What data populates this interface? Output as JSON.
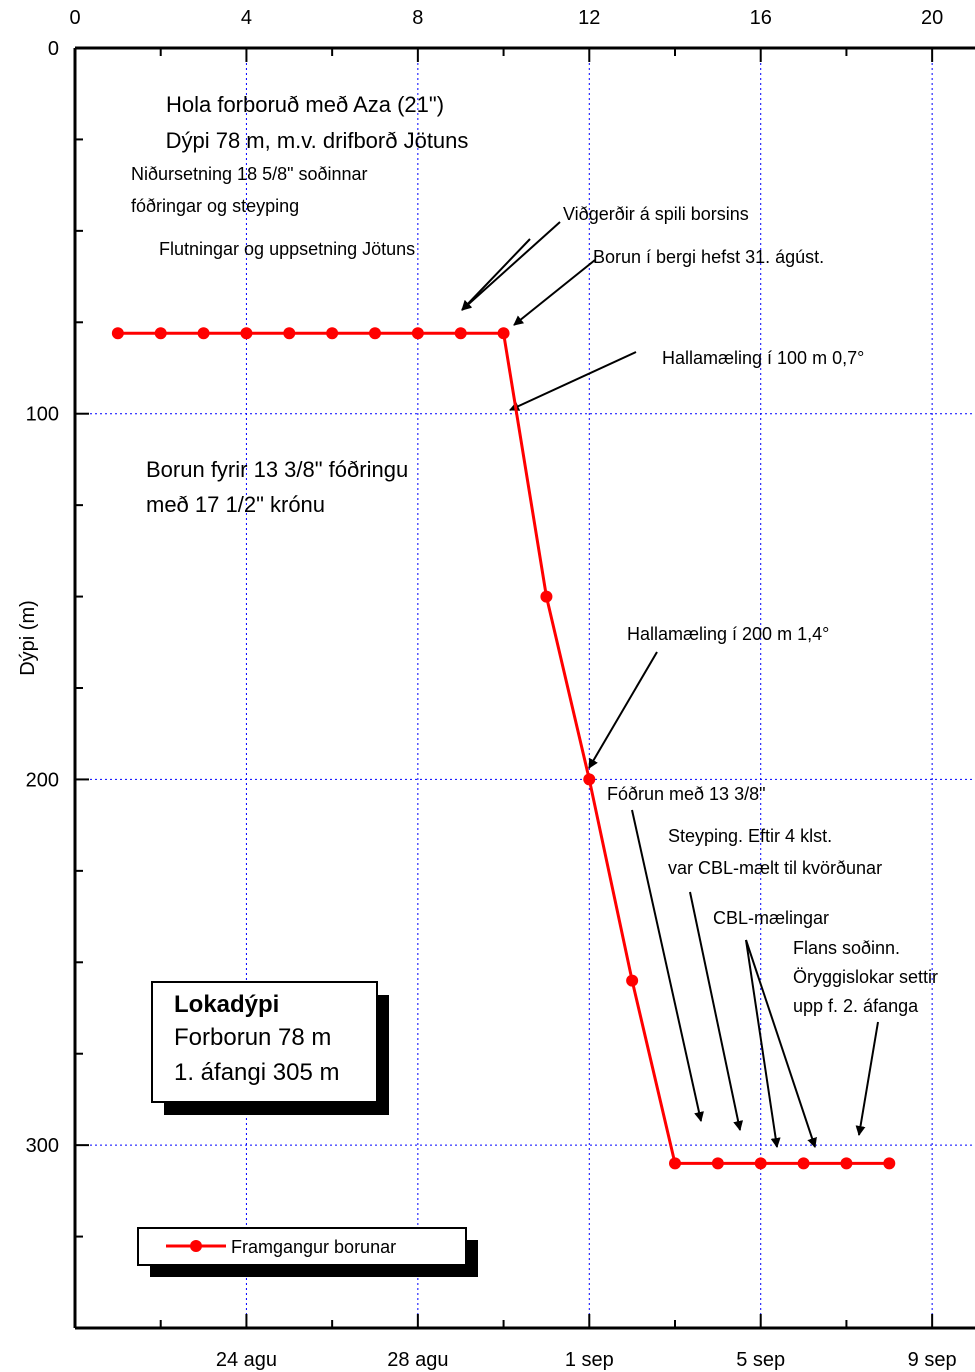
{
  "chart_data": {
    "type": "line",
    "ylabel": "Dýpi (m)",
    "xlabel": "",
    "xlim_top": [
      0,
      21
    ],
    "x_top_ticks": [
      "0",
      "4",
      "8",
      "12",
      "16",
      "20"
    ],
    "x_bottom_ticks": [
      "24 agu",
      "28 agu",
      "1 sep",
      "5 sep",
      "9 sep"
    ],
    "ylim": [
      0,
      350
    ],
    "y_ticks": [
      "0",
      "100",
      "200",
      "300"
    ],
    "grid": true,
    "series": [
      {
        "name": "Framgangur borunar",
        "color": "#ff0000",
        "x": [
          1,
          2,
          3,
          4,
          5,
          6,
          7,
          8,
          9,
          10,
          11,
          12,
          13,
          14,
          15,
          16,
          17,
          18,
          19
        ],
        "y": [
          78,
          78,
          78,
          78,
          78,
          78,
          78,
          78,
          78,
          78,
          150,
          200,
          255,
          305,
          305,
          305,
          305,
          305,
          305
        ]
      }
    ],
    "legend": {
      "label": "Framgangur borunar",
      "placement": "bottom-left"
    },
    "info_box": {
      "title": "Lokadýpi",
      "line1": "Forborun   78 m",
      "line2": "1. áfangi 305 m"
    },
    "annotations": {
      "hola": "Hola forboruð með Aza (21\")",
      "dypi": "Dýpi 78 m, m.v. drifborð Jötuns",
      "nidursetning1": "Niðursetning 18 5/8\" soðinnar",
      "nidursetning2": "fóðringar og steyping",
      "flutningar": "Flutningar og uppsetning Jötuns",
      "vidgerdir": "Viðgerðir á spili borsins",
      "borun_bergi": "Borun í bergi hefst 31. ágúst.",
      "halla100": "Hallamæling í 100 m 0,7°",
      "borun_fyrir1": "Borun fyrir 13 3/8\" fóðringu",
      "borun_fyrir2": "með 17 1/2\" krónu",
      "halla200": "Hallamæling í 200 m 1,4°",
      "fodrun": "Fóðrun með 13 3/8\"",
      "steyping1": "Steyping. Eftir 4 klst.",
      "steyping2": "var CBL-mælt til kvörðunar",
      "cbl": "CBL-mælingar",
      "flans1": "Flans soðinn.",
      "flans2": "Öryggislokar settir",
      "flans3": "upp f. 2. áfanga"
    }
  }
}
